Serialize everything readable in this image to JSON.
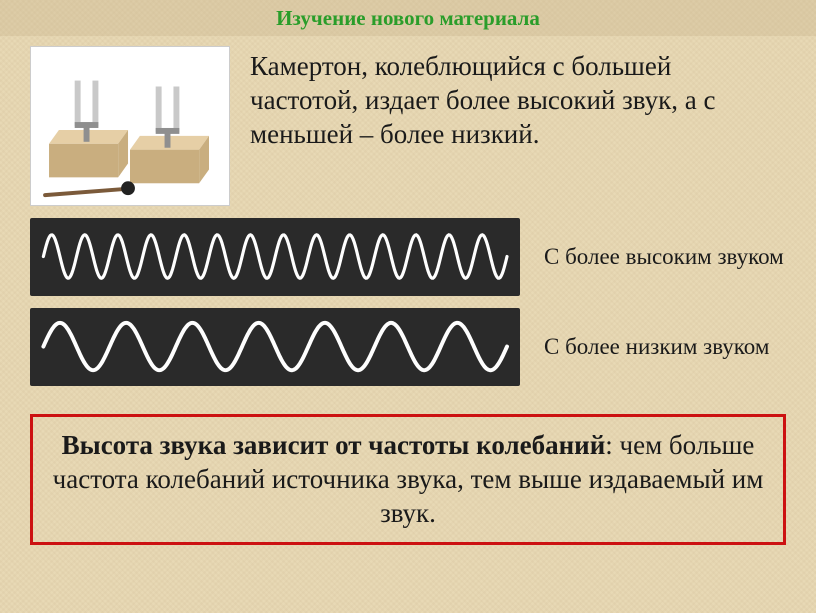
{
  "header": {
    "title": "Изучение нового материала",
    "color": "#2a9d2a"
  },
  "mainText": "Камертон, колеблющийся с большей частотой, издает более высокий звук, а с меньшей – более низкий.",
  "waves": {
    "high": {
      "label": "С более высоким звуком",
      "cycles": 14,
      "amplitude": 22,
      "strokeWidth": 3.2,
      "stroke": "#fefefe",
      "bg": "#2a2a2a"
    },
    "low": {
      "label": "С более низким звуком",
      "cycles": 7,
      "amplitude": 24,
      "strokeWidth": 4,
      "stroke": "#fefefe",
      "bg": "#2a2a2a"
    }
  },
  "conclusion": {
    "bold": "Высота звука зависит от частоты колебаний",
    "rest": ": чем больше частота колебаний источника звука, тем выше издаваемый им звук.",
    "borderColor": "#cc1111"
  },
  "forkIllustration": {
    "boxColor": "#e6cfa6",
    "boxShadow": "#c9ae7f",
    "forkColor": "#c9c9c9",
    "forkShadow": "#8f8f8f",
    "stickColor": "#7b5a3a",
    "ballColor": "#222222"
  }
}
